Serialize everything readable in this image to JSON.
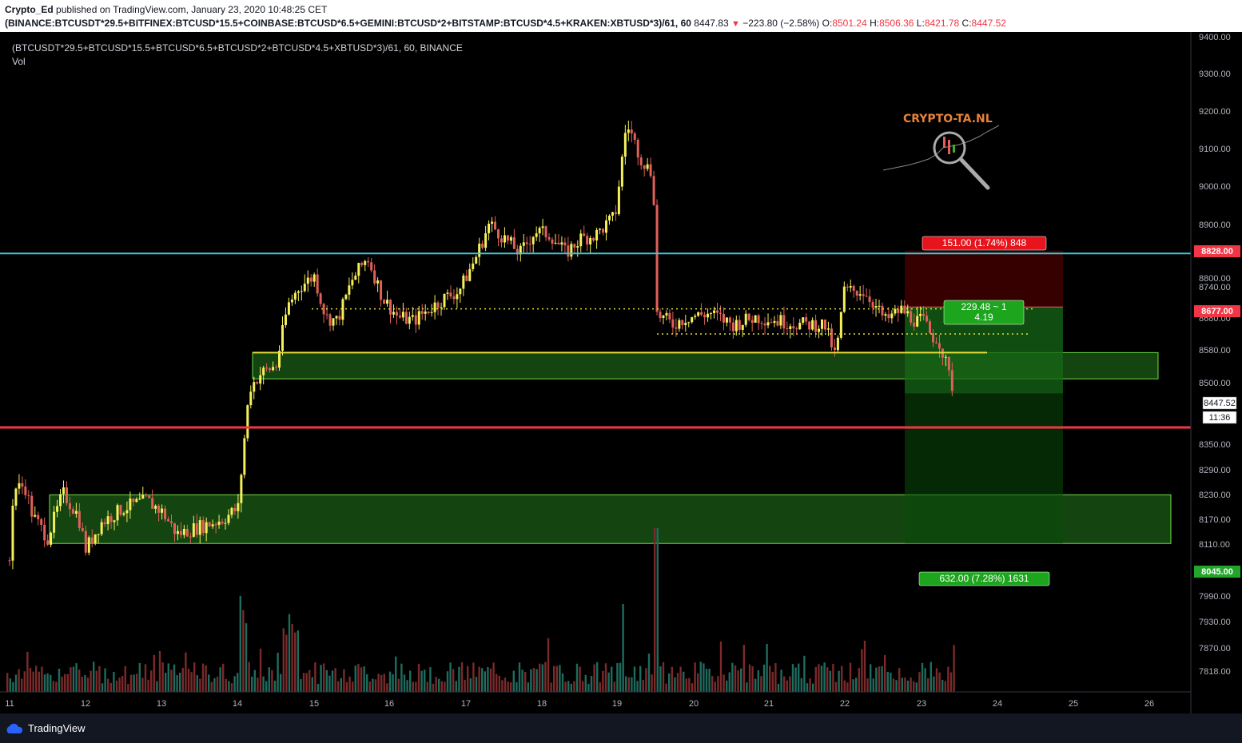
{
  "header": {
    "author": "Crypto_Ed",
    "published_text": "published on TradingView.com, January 23, 2020 10:48:25 CET",
    "symbol": "(BINANCE:BTCUSDT*29.5+BITFINEX:BTCUSD*15.5+COINBASE:BTCUSD*6.5+GEMINI:BTCUSD*2+BITSTAMP:BTCUSD*4.5+KRAKEN:XBTUSD*3)/61, 60",
    "last": "8447.83",
    "change": "−223.80 (−2.58%)",
    "o_label": "O:",
    "o": "8501.24",
    "h_label": "H:",
    "h": "8506.36",
    "l_label": "L:",
    "l": "8421.78",
    "c_label": "C:",
    "c": "8447.52"
  },
  "legend": {
    "line1": "(BTCUSDT*29.5+BTCUSD*15.5+BTCUSD*6.5+BTCUSD*2+BTCUSD*4.5+XBTUSD*3)/61, 60, BINANCE",
    "line2": "Vol"
  },
  "watermark": {
    "text": "CRYPTO-TA.NL"
  },
  "footer": {
    "brand": "TradingView"
  },
  "colors": {
    "up": "#f5f05a",
    "down": "#e0605a",
    "vol_up": "#1f6b5e",
    "vol_down": "#7a2a2a",
    "cyan": "#3ec8d8",
    "red_line": "#f23645",
    "green_zone": "#35b22a"
  },
  "chart_data": {
    "type": "candlestick",
    "interval": "60",
    "y_axis_ticks": [
      "9400.00",
      "9300.00",
      "9200.00",
      "9100.00",
      "9000.00",
      "8900.00",
      "8800.00",
      "8740.00",
      "8680.00",
      "8580.00",
      "8500.00",
      "8350.00",
      "8290.00",
      "8230.00",
      "8170.00",
      "8110.00",
      "7990.00",
      "7930.00",
      "7870.00",
      "7818.00"
    ],
    "x_axis_ticks": [
      "11",
      "12",
      "13",
      "14",
      "15",
      "16",
      "17",
      "18",
      "19",
      "20",
      "21",
      "22",
      "23",
      "24",
      "25",
      "26"
    ],
    "price_labels": [
      {
        "text": "8828.00",
        "color": "#f23645"
      },
      {
        "text": "8677.00",
        "color": "#f23645"
      },
      {
        "text": "8447.52",
        "color": "#ffffff"
      },
      {
        "text": "11:36",
        "color": "#ffffff"
      },
      {
        "text": "8045.00",
        "color": "#22a52a"
      }
    ],
    "horizontal_lines": [
      {
        "name": "resistance",
        "price": 8820,
        "color": "#3ec8d8"
      },
      {
        "name": "support",
        "price": 8355,
        "color": "#f23645"
      }
    ],
    "zones": [
      {
        "name": "upper-demand-zone",
        "from": 8485,
        "to": 8555
      },
      {
        "name": "lower-demand-zone",
        "from": 8045,
        "to": 8175
      }
    ],
    "position": {
      "type": "short",
      "entry": 8677,
      "stop": 8828,
      "target": 8045,
      "stop_label": "151.00 (1.74%) 848",
      "target_label": "632.00 (7.28%) 1631",
      "ratio_line1": "229.48 ~ 1",
      "ratio_line2": "4.19"
    },
    "key_path": [
      [
        11.0,
        8000
      ],
      [
        11.05,
        8190
      ],
      [
        11.2,
        8200
      ],
      [
        11.3,
        8120
      ],
      [
        11.5,
        8060
      ],
      [
        11.7,
        8180
      ],
      [
        11.9,
        8120
      ],
      [
        12.0,
        8030
      ],
      [
        12.2,
        8100
      ],
      [
        12.5,
        8140
      ],
      [
        12.8,
        8160
      ],
      [
        13.0,
        8130
      ],
      [
        13.2,
        8070
      ],
      [
        13.5,
        8090
      ],
      [
        13.8,
        8110
      ],
      [
        14.0,
        8140
      ],
      [
        14.08,
        8320
      ],
      [
        14.15,
        8460
      ],
      [
        14.3,
        8500
      ],
      [
        14.5,
        8520
      ],
      [
        14.65,
        8680
      ],
      [
        14.8,
        8730
      ],
      [
        15.0,
        8760
      ],
      [
        15.15,
        8650
      ],
      [
        15.3,
        8640
      ],
      [
        15.5,
        8750
      ],
      [
        15.7,
        8810
      ],
      [
        15.9,
        8700
      ],
      [
        16.1,
        8650
      ],
      [
        16.3,
        8640
      ],
      [
        16.5,
        8670
      ],
      [
        16.7,
        8700
      ],
      [
        16.9,
        8720
      ],
      [
        17.1,
        8800
      ],
      [
        17.3,
        8900
      ],
      [
        17.5,
        8860
      ],
      [
        17.7,
        8820
      ],
      [
        17.9,
        8880
      ],
      [
        18.1,
        8870
      ],
      [
        18.3,
        8820
      ],
      [
        18.5,
        8860
      ],
      [
        18.7,
        8870
      ],
      [
        18.95,
        8920
      ],
      [
        19.1,
        9170
      ],
      [
        19.3,
        9070
      ],
      [
        19.45,
        9030
      ],
      [
        19.5,
        8660
      ],
      [
        19.7,
        8630
      ],
      [
        19.9,
        8650
      ],
      [
        20.2,
        8660
      ],
      [
        20.5,
        8630
      ],
      [
        20.8,
        8650
      ],
      [
        21.1,
        8640
      ],
      [
        21.4,
        8630
      ],
      [
        21.7,
        8630
      ],
      [
        21.85,
        8540
      ],
      [
        21.95,
        8720
      ],
      [
        22.2,
        8720
      ],
      [
        22.3,
        8700
      ],
      [
        22.5,
        8640
      ],
      [
        22.7,
        8670
      ],
      [
        22.9,
        8640
      ],
      [
        23.0,
        8640
      ],
      [
        23.1,
        8600
      ],
      [
        23.2,
        8590
      ],
      [
        23.3,
        8520
      ],
      [
        23.4,
        8448
      ]
    ]
  }
}
